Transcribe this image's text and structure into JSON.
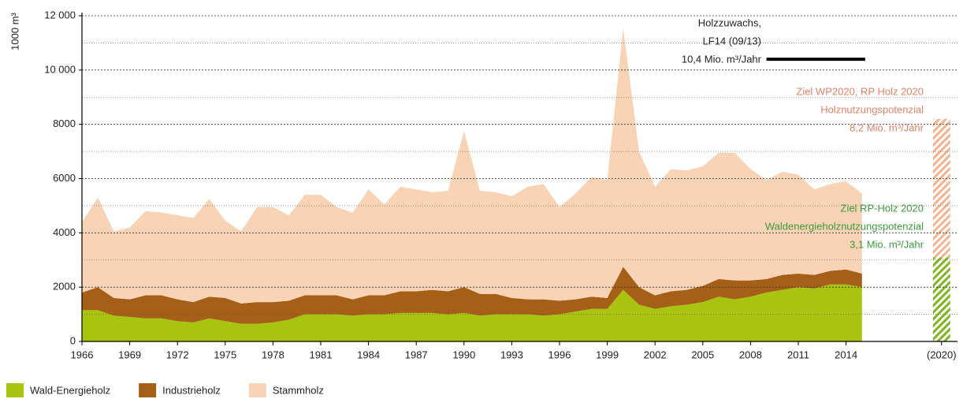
{
  "chart_data": {
    "type": "stacked_area",
    "y_label": "1000 m³",
    "xlim": [
      1966,
      2021
    ],
    "xticks": [
      1966,
      1969,
      1972,
      1975,
      1978,
      1981,
      1984,
      1987,
      1990,
      1993,
      1996,
      1999,
      2002,
      2005,
      2008,
      2011,
      2014,
      {
        "value": 2020,
        "label": "(2020)"
      }
    ],
    "ylim": [
      0,
      12000
    ],
    "yticks": [
      0,
      2000,
      4000,
      6000,
      8000,
      {
        "value": 10000,
        "label": "10 000"
      },
      {
        "value": 12000,
        "label": "12 000"
      }
    ],
    "minor_yticks": [
      1000,
      3000,
      5000,
      7000,
      9000,
      11000
    ],
    "grid": true,
    "x": [
      1966,
      1967,
      1968,
      1969,
      1970,
      1971,
      1972,
      1973,
      1974,
      1975,
      1976,
      1977,
      1978,
      1979,
      1980,
      1981,
      1982,
      1983,
      1984,
      1985,
      1986,
      1987,
      1988,
      1989,
      1990,
      1991,
      1992,
      1993,
      1994,
      1995,
      1996,
      1997,
      1998,
      1999,
      2000,
      2001,
      2002,
      2003,
      2004,
      2005,
      2006,
      2007,
      2008,
      2009,
      2010,
      2011,
      2012,
      2013,
      2014,
      2015
    ],
    "series": [
      {
        "name": "Wald-Energieholz",
        "color": "#a8c411",
        "values": [
          1150,
          1150,
          950,
          900,
          850,
          850,
          750,
          700,
          850,
          750,
          650,
          650,
          700,
          800,
          1000,
          1000,
          1000,
          950,
          1000,
          1000,
          1050,
          1050,
          1050,
          1000,
          1050,
          950,
          1000,
          1000,
          1000,
          950,
          1000,
          1100,
          1200,
          1200,
          1900,
          1350,
          1200,
          1300,
          1350,
          1450,
          1650,
          1550,
          1650,
          1800,
          1900,
          2000,
          1950,
          2100,
          2100,
          2000
        ]
      },
      {
        "name": "Industrieholz",
        "color": "#a65f16",
        "values": [
          650,
          850,
          650,
          650,
          850,
          850,
          800,
          750,
          800,
          850,
          750,
          800,
          750,
          700,
          700,
          700,
          700,
          600,
          700,
          700,
          800,
          800,
          850,
          850,
          950,
          800,
          750,
          600,
          550,
          600,
          500,
          450,
          450,
          400,
          850,
          650,
          500,
          550,
          550,
          600,
          650,
          700,
          600,
          500,
          550,
          500,
          500,
          500,
          550,
          500
        ]
      },
      {
        "name": "Stammholz",
        "color": "#f8d3b6",
        "values": [
          2600,
          3300,
          2450,
          2650,
          3100,
          3050,
          3100,
          3100,
          3600,
          2850,
          2650,
          3500,
          3500,
          3150,
          3700,
          3700,
          3250,
          3200,
          3900,
          3350,
          3850,
          3750,
          3600,
          3700,
          5750,
          3800,
          3750,
          3750,
          4150,
          4250,
          3450,
          3900,
          4400,
          4350,
          8800,
          5000,
          4000,
          4500,
          4400,
          4400,
          4650,
          4700,
          4100,
          3650,
          3800,
          3650,
          3150,
          3200,
          3250,
          2950
        ]
      }
    ],
    "targets": [
      {
        "x": 2020,
        "from": 0,
        "to": 3100,
        "color": "#7fb51e"
      },
      {
        "x": 2020,
        "from": 3100,
        "to": 8200,
        "color": "#f2b48f"
      }
    ],
    "growth_line": {
      "value": 10400,
      "x": [
        2009,
        2015.2
      ],
      "color": "#000000"
    },
    "annotations": [
      {
        "color": "#222222",
        "lines": [
          "Holzzuwachs,",
          "LF14 (09/13)",
          "10,4 Mio. m³/Jahr"
        ]
      },
      {
        "color": "#e0826a",
        "lines": [
          "Ziel WP2020, RP Holz 2020",
          "Holznutzungspotenzial",
          "8,2 Mio. m³/Jahr"
        ]
      },
      {
        "color": "#3d9a3c",
        "lines": [
          "Ziel RP-Holz 2020",
          "Waldenergieholznutzungspotenzial",
          "3,1 Mio. m³/Jahr"
        ]
      }
    ]
  }
}
